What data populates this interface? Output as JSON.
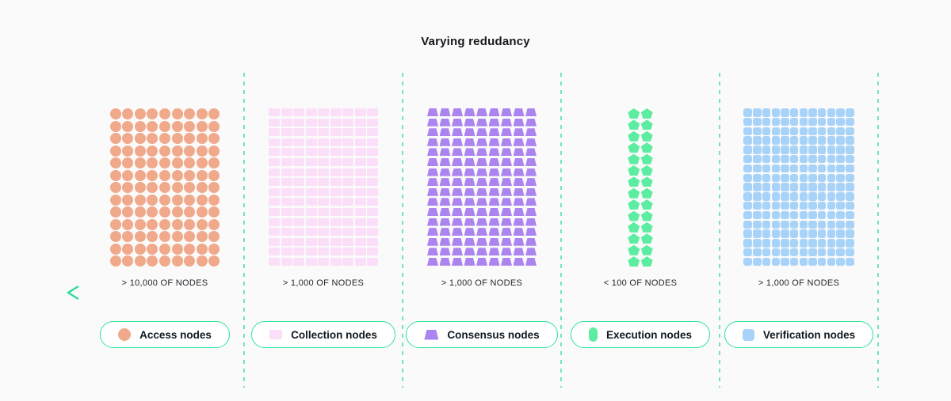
{
  "title": "Varying redudancy",
  "arrow": {
    "direction": "left",
    "color_start": "#2BDD97",
    "color_end": "#0B8A50"
  },
  "divider_color": "#74E6B3",
  "legend_border_color": "#2FE39A",
  "background_color": "#FAFAFA",
  "sections": [
    {
      "id": "access",
      "count_label": "> 10,000 OF NODES",
      "legend_label": "Access nodes",
      "shape": "circle",
      "legend_icon": "circle",
      "color": "#F0A98A",
      "cols": 9,
      "rows": 13
    },
    {
      "id": "collection",
      "count_label": "> 1,000 OF NODES",
      "legend_label": "Collection nodes",
      "shape": "rect",
      "legend_icon": "rect",
      "color": "#FBDFF8",
      "cols": 9,
      "rows": 16
    },
    {
      "id": "consensus",
      "count_label": "> 1,000 OF NODES",
      "legend_label": "Consensus nodes",
      "shape": "trapezoid",
      "legend_icon": "trapezoid",
      "color": "#AB84F0",
      "cols": 9,
      "rows": 16
    },
    {
      "id": "execution",
      "count_label": "< 100 OF NODES",
      "legend_label": "Execution nodes",
      "shape": "pentagon",
      "legend_icon": "capsule",
      "color": "#5DEDA2",
      "cols": 2,
      "rows": 14
    },
    {
      "id": "verification",
      "count_label": "> 1,000 OF NODES",
      "legend_label": "Verification nodes",
      "shape": "square",
      "legend_icon": "square",
      "color": "#A8D3F8",
      "cols": 12,
      "rows": 17
    }
  ]
}
